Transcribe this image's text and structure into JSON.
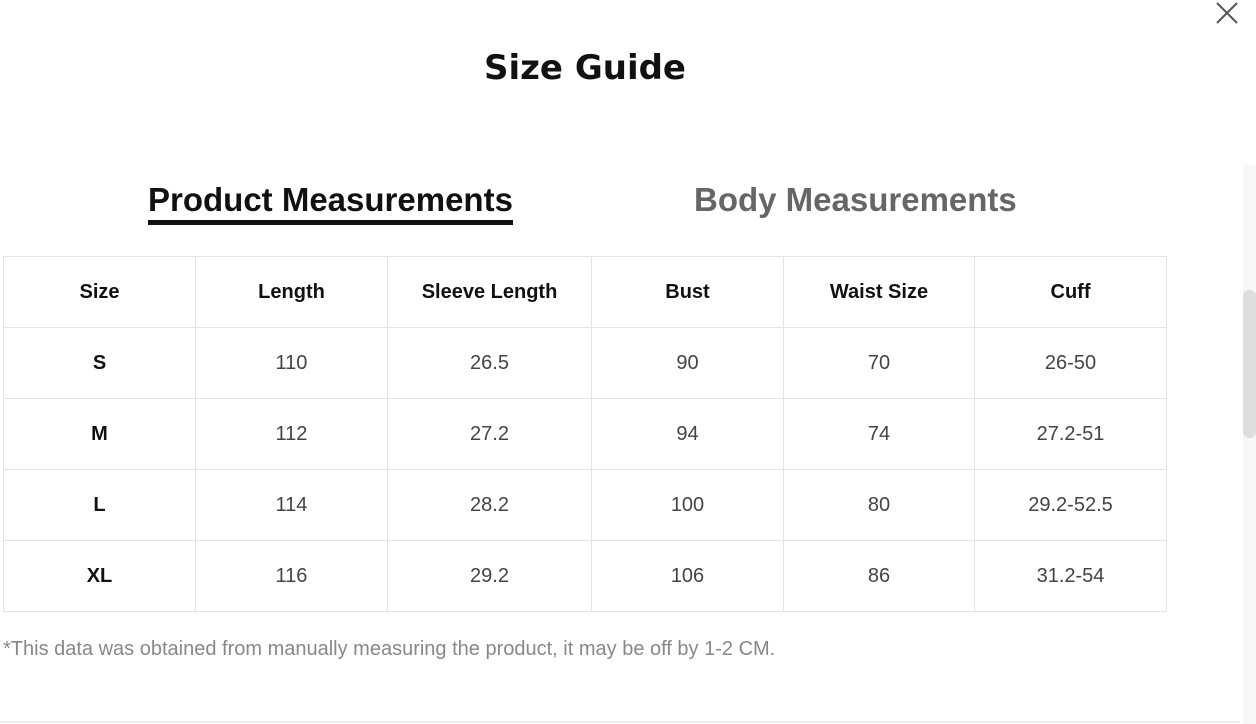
{
  "title": "Size Guide",
  "tabs": [
    {
      "label": "Product Measurements",
      "active": true
    },
    {
      "label": "Body Measurements",
      "active": false
    }
  ],
  "table": {
    "headers": [
      "Size",
      "Length",
      "Sleeve Length",
      "Bust",
      "Waist Size",
      "Cuff"
    ],
    "rows": [
      [
        "S",
        "110",
        "26.5",
        "90",
        "70",
        "26-50"
      ],
      [
        "M",
        "112",
        "27.2",
        "94",
        "74",
        "27.2-51"
      ],
      [
        "L",
        "114",
        "28.2",
        "100",
        "80",
        "29.2-52.5"
      ],
      [
        "XL",
        "116",
        "29.2",
        "106",
        "86",
        "31.2-54"
      ]
    ]
  },
  "note": "*This data was obtained from manually measuring the product, it may be off by 1-2 CM.",
  "icons": {
    "close": "close-icon"
  }
}
